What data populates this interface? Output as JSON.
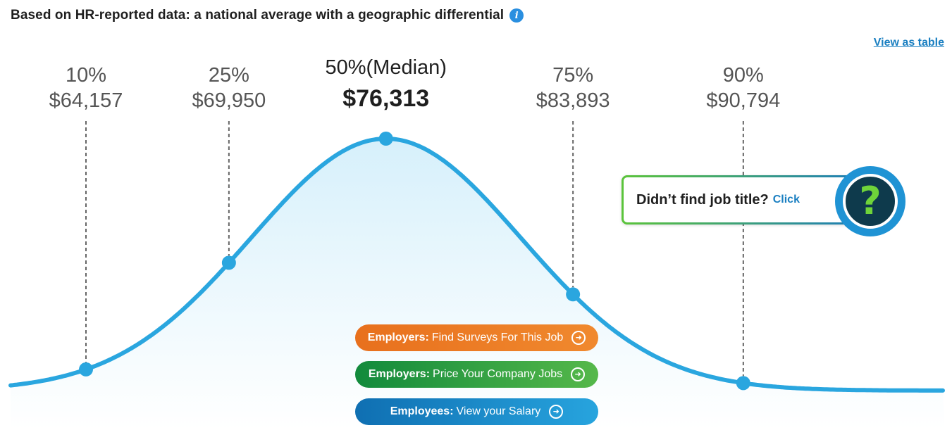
{
  "header": {
    "title": "Based on HR-reported data: a national average with a geographic differential",
    "info_icon": "info-icon",
    "info_glyph": "i"
  },
  "view_table_link": "View as table",
  "chart_data": {
    "type": "area",
    "percentiles": [
      {
        "pct": "10%",
        "amount": "$64,157",
        "value": 64157
      },
      {
        "pct": "25%",
        "amount": "$69,950",
        "value": 69950
      },
      {
        "pct": "50%(Median)",
        "amount": "$76,313",
        "value": 76313
      },
      {
        "pct": "75%",
        "amount": "$83,893",
        "value": 83893
      },
      {
        "pct": "90%",
        "amount": "$90,794",
        "value": 90794
      }
    ],
    "curve_color": "#2aa6df",
    "fill_color_top": "#d9f1fb",
    "dashed_line_color": "#666666"
  },
  "cta_buttons": [
    {
      "bold": "Employers:",
      "text": "Find Surveys For This Job",
      "color": "#ee7d28"
    },
    {
      "bold": "Employers:",
      "text": "Price Your Company Jobs",
      "color": "#2f9e3f"
    },
    {
      "bold": "Employees:",
      "text": "View your Salary",
      "color": "#1b8bcb"
    }
  ],
  "help": {
    "text": "Didn’t find job title?",
    "link": "Click",
    "icon": "question-mark-icon",
    "glyph": "?"
  }
}
